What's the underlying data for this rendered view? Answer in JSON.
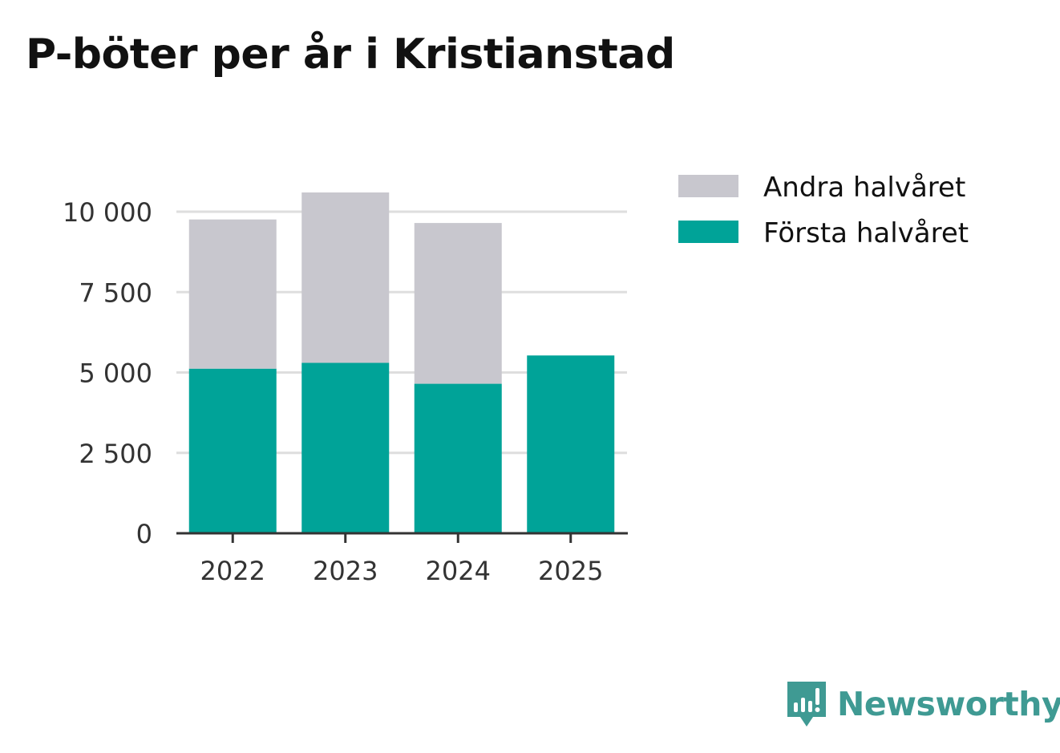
{
  "title": "P-böter per år i Kristianstad",
  "brand": {
    "name": "Newsworthy",
    "icon": "newsworthy-logo-icon",
    "color": "#3f9a93"
  },
  "chart_data": {
    "type": "bar",
    "stacked": true,
    "title": "P-böter per år i Kristianstad",
    "xlabel": "",
    "ylabel": "",
    "categories": [
      "2022",
      "2023",
      "2024",
      "2025"
    ],
    "series": [
      {
        "name": "Första halvåret",
        "color": "#00a398",
        "values": [
          5120,
          5300,
          4650,
          5530
        ]
      },
      {
        "name": "Andra halvåret",
        "color": "#c8c7ce",
        "values": [
          4640,
          5300,
          5000,
          0
        ]
      }
    ],
    "ylim": [
      0,
      10600
    ],
    "yticks": [
      0,
      2500,
      5000,
      7500,
      10000
    ],
    "ytick_labels": [
      "0",
      "2 500",
      "5 000",
      "7 500",
      "10 000"
    ],
    "grid": true,
    "legend": {
      "placement": "right",
      "entries": [
        {
          "label": "Andra halvåret",
          "color": "#c8c7ce"
        },
        {
          "label": "Första halvåret",
          "color": "#00a398"
        }
      ]
    }
  }
}
